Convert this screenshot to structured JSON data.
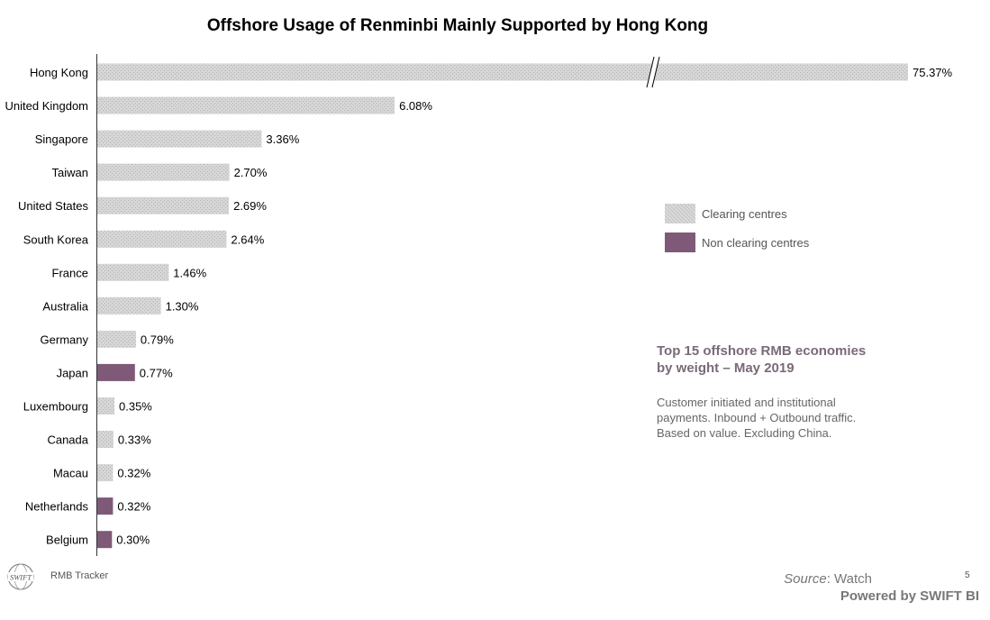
{
  "title": "Offshore Usage of Renminbi Mainly Supported by Hong Kong",
  "colors": {
    "clearing": "#cfcfcf",
    "non_clearing": "#7e5a78"
  },
  "legend": {
    "clearing": "Clearing centres",
    "non_clearing": "Non clearing centres"
  },
  "note": {
    "heading_line1": "Top 15 offshore RMB economies",
    "heading_line2": "by weight – May 2019",
    "body_line1": "Customer initiated and institutional",
    "body_line2": "payments. Inbound + Outbound traffic.",
    "body_line3": "Based on value. Excluding China."
  },
  "footer": {
    "logo_text": "SWIFT",
    "tracker": "RMB Tracker",
    "source_label": "Source",
    "source_value": ": Watch",
    "page_number": "5",
    "powered_by": "Powered by SWIFT BI"
  },
  "chart_data": {
    "type": "bar",
    "orientation": "horizontal",
    "axis_break": true,
    "categories": [
      "Hong Kong",
      "United Kingdom",
      "Singapore",
      "Taiwan",
      "United States",
      "South Korea",
      "France",
      "Australia",
      "Germany",
      "Japan",
      "Luxembourg",
      "Canada",
      "Macau",
      "Netherlands",
      "Belgium"
    ],
    "values": [
      75.37,
      6.08,
      3.36,
      2.7,
      2.69,
      2.64,
      1.46,
      1.3,
      0.79,
      0.77,
      0.35,
      0.33,
      0.32,
      0.32,
      0.3
    ],
    "value_labels": [
      "75.37%",
      "6.08%",
      "3.36%",
      "2.70%",
      "2.69%",
      "2.64%",
      "1.46%",
      "1.30%",
      "0.79%",
      "0.77%",
      "0.35%",
      "0.33%",
      "0.32%",
      "0.32%",
      "0.30%"
    ],
    "clearing": [
      true,
      true,
      true,
      true,
      true,
      true,
      true,
      true,
      true,
      false,
      true,
      true,
      true,
      false,
      false
    ]
  }
}
